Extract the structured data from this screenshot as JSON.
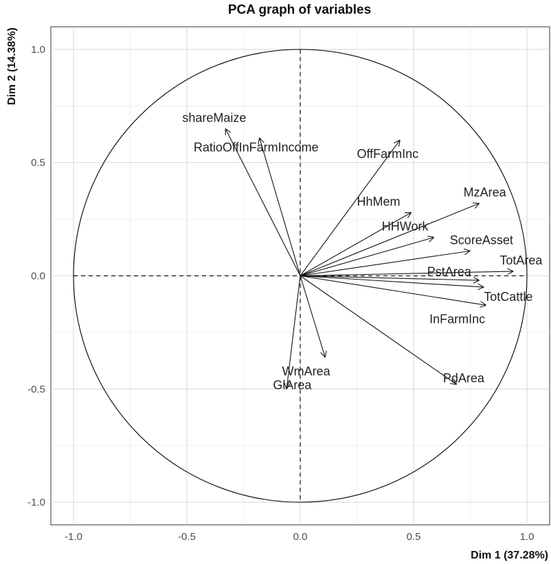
{
  "chart_data": {
    "type": "scatter",
    "title": "PCA graph of variables",
    "xlabel": "Dim 1 (37.28%)",
    "ylabel": "Dim 2 (14.38%)",
    "xlim": [
      -1.1,
      1.1
    ],
    "ylim": [
      -1.1,
      1.1
    ],
    "xticks": [
      -1.0,
      -0.5,
      0.0,
      0.5,
      1.0
    ],
    "yticks": [
      -1.0,
      -0.5,
      0.0,
      0.5,
      1.0
    ],
    "xtick_labels": [
      "-1.0",
      "-0.5",
      "0.0",
      "0.5",
      "1.0"
    ],
    "ytick_labels": [
      "-1.0",
      "-0.5",
      "0.0",
      "0.5",
      "1.0"
    ],
    "grid": true,
    "correlation_circle": true,
    "variables": [
      {
        "name": "shareMaize",
        "x": -0.33,
        "y": 0.65
      },
      {
        "name": "RatioOffInFarmIncome",
        "x": -0.18,
        "y": 0.61
      },
      {
        "name": "OffFarmInc",
        "x": 0.44,
        "y": 0.6
      },
      {
        "name": "HhMem",
        "x": 0.49,
        "y": 0.28
      },
      {
        "name": "MzArea",
        "x": 0.79,
        "y": 0.32
      },
      {
        "name": "HHWork",
        "x": 0.59,
        "y": 0.17
      },
      {
        "name": "ScoreAsset",
        "x": 0.75,
        "y": 0.11
      },
      {
        "name": "TotArea",
        "x": 0.94,
        "y": 0.02
      },
      {
        "name": "PstArea",
        "x": 0.79,
        "y": -0.02
      },
      {
        "name": "TotCattle",
        "x": 0.81,
        "y": -0.05
      },
      {
        "name": "InFarmInc",
        "x": 0.82,
        "y": -0.13
      },
      {
        "name": "PdArea",
        "x": 0.69,
        "y": -0.48
      },
      {
        "name": "WmArea",
        "x": 0.11,
        "y": -0.36
      },
      {
        "name": "GlArea",
        "x": -0.06,
        "y": -0.5
      }
    ]
  }
}
